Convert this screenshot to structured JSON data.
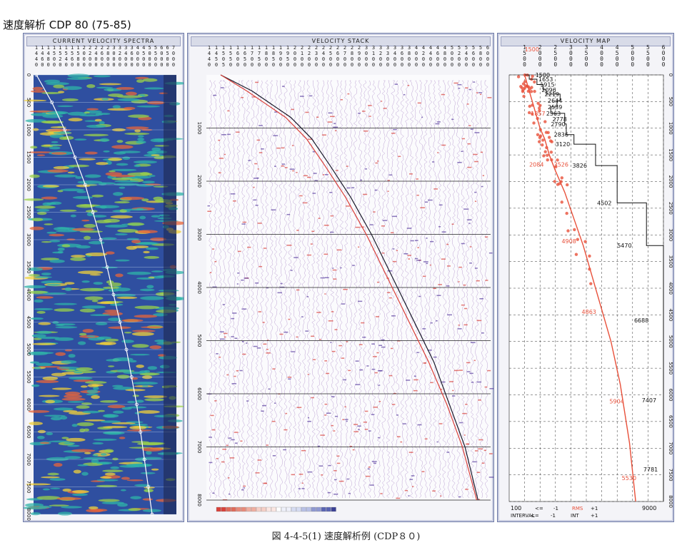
{
  "header": {
    "title": "速度解析  CDP 80 (75-85)"
  },
  "caption": "図 4-4-5(1)   速度解析例 (CDP８０)",
  "panels": {
    "spectra": {
      "title": "CURRENT VELOCITY SPECTRA"
    },
    "stack": {
      "title": "VELOCITY STACK"
    },
    "map": {
      "title": "VELOCITY MAP"
    }
  },
  "colors": {
    "spectraBg": "#2f4fa0",
    "stackTrace": "#8a5bb0",
    "stackRed": "#d9413a",
    "curve": "#1a1a2a",
    "mapRed": "#e8503a"
  },
  "chart_data": [
    {
      "type": "heatmap",
      "title": "CURRENT VELOCITY SPECTRA",
      "x_tick_labels": [
        "1440",
        "1460",
        "1480",
        "1500",
        "1520",
        "1540",
        "1560",
        "1580",
        "2000",
        "2200",
        "2400",
        "2600",
        "2800",
        "3000",
        "3200",
        "3400",
        "3600",
        "4000",
        "4500",
        "5000",
        "5500",
        "6000",
        "6500",
        "7000"
      ],
      "y_tick_labels": [
        "0",
        "500",
        "1000",
        "1500",
        "2000",
        "2500",
        "3000",
        "3500",
        "4000",
        "4500",
        "5000",
        "5500",
        "6000",
        "6500",
        "7000",
        "7500",
        "8000"
      ],
      "ylim": [
        0,
        8000
      ],
      "picked_curve": {
        "time": [
          0,
          500,
          1000,
          1500,
          2000,
          2500,
          3000,
          3500,
          4000,
          4500,
          5000,
          5500,
          6000,
          6500,
          7000,
          7500,
          8000
        ],
        "x_frac": [
          0.0,
          0.12,
          0.22,
          0.3,
          0.38,
          0.44,
          0.5,
          0.55,
          0.6,
          0.65,
          0.7,
          0.74,
          0.78,
          0.81,
          0.84,
          0.87,
          0.9
        ]
      }
    },
    {
      "type": "line",
      "title": "VELOCITY STACK",
      "x_tick_labels": [
        "1440",
        "1450",
        "1505",
        "1550",
        "1600",
        "1650",
        "1700",
        "1750",
        "1800",
        "1850",
        "1900",
        "1950",
        "2000",
        "2100",
        "2200",
        "2300",
        "2400",
        "2500",
        "2600",
        "2700",
        "2800",
        "2900",
        "3000",
        "3100",
        "3200",
        "3300",
        "3400",
        "3600",
        "3800",
        "4000",
        "4200",
        "4400",
        "4600",
        "4800",
        "5000",
        "5200",
        "5400",
        "5600",
        "5800",
        "6000"
      ],
      "y_tick_labels": [
        "1000",
        "2000",
        "3000",
        "4000",
        "5000",
        "6000",
        "7000",
        "8000"
      ],
      "ylim": [
        0,
        8000
      ],
      "color_scale_cells": 24,
      "series": [
        {
          "x_frac": [
            0.0,
            0.12,
            0.27,
            0.35,
            0.42,
            0.5,
            0.58,
            0.66,
            0.74,
            0.82,
            0.88,
            0.94,
            0.99
          ],
          "time": [
            0,
            300,
            800,
            1200,
            1700,
            2300,
            3000,
            3800,
            4600,
            5400,
            6200,
            7000,
            8000
          ]
        },
        {
          "x_frac": [
            0.0,
            0.1,
            0.25,
            0.33,
            0.4,
            0.48,
            0.56,
            0.64,
            0.72,
            0.8,
            0.87,
            0.93,
            0.985
          ],
          "time": [
            0,
            300,
            800,
            1200,
            1700,
            2300,
            3000,
            3800,
            4600,
            5400,
            6200,
            7000,
            8000
          ]
        }
      ]
    },
    {
      "type": "line",
      "title": "VELOCITY MAP",
      "x_tick_labels": [
        "1500",
        "2000",
        "2500",
        "3000",
        "3500",
        "4000",
        "4500",
        "5000",
        "5500",
        "6000"
      ],
      "xlim": [
        1000,
        6000
      ],
      "y_tick_labels": [
        "0",
        "500",
        "1000",
        "1500",
        "2000",
        "2500",
        "3000",
        "3500",
        "4000",
        "4500",
        "5000",
        "5500",
        "6000",
        "6500",
        "7000",
        "7500",
        "8000"
      ],
      "ylim": [
        0,
        8000
      ],
      "rms_velocity": {
        "v": [
          1500,
          1600,
          1700,
          1800,
          1900,
          2000,
          2150,
          2300,
          2500,
          2800,
          3100,
          3400,
          3700,
          4000,
          4300,
          4600,
          4900,
          5100
        ],
        "t": [
          0,
          200,
          400,
          600,
          800,
          1000,
          1200,
          1500,
          1800,
          2200,
          2700,
          3200,
          3800,
          4400,
          5000,
          5800,
          6900,
          8000
        ]
      },
      "interval_velocity": {
        "labels": [
          "1500",
          "1653",
          "1915",
          "2096",
          "2219",
          "2644",
          "2539",
          "2363",
          "2778",
          "2790",
          "2836",
          "3120",
          "3826",
          "4502",
          "5470",
          "6688",
          "7407",
          "7781"
        ],
        "label_t": [
          0,
          80,
          180,
          280,
          360,
          480,
          600,
          720,
          830,
          920,
          1120,
          1300,
          1700,
          2400,
          3200,
          4600,
          6100,
          7400
        ],
        "label_v": [
          1850,
          1950,
          2000,
          2050,
          2150,
          2250,
          2250,
          2200,
          2400,
          2350,
          2450,
          2500,
          3050,
          3850,
          4500,
          5050,
          5300,
          5350
        ],
        "step_v": [
          1500,
          1650,
          1900,
          2100,
          2200,
          2650,
          2550,
          2350,
          2800,
          2800,
          2850,
          3100,
          3800,
          4500,
          5450,
          6650,
          7400,
          7750,
          7750
        ],
        "step_t": [
          0,
          80,
          180,
          280,
          360,
          480,
          600,
          720,
          830,
          920,
          1120,
          1300,
          1700,
          2400,
          3200,
          4600,
          6100,
          7400,
          8000
        ]
      },
      "red_labels": [
        "1500",
        "1857",
        "2084",
        "3526",
        "4908",
        "4863",
        "5904",
        "5530"
      ],
      "legend": {
        "min": "100",
        "max": "9000",
        "row1": [
          "<=",
          "-1",
          "RMS",
          "+1"
        ],
        "row2": [
          "INTERVAL",
          "<=",
          "-1",
          "INT",
          "+1"
        ]
      }
    }
  ]
}
